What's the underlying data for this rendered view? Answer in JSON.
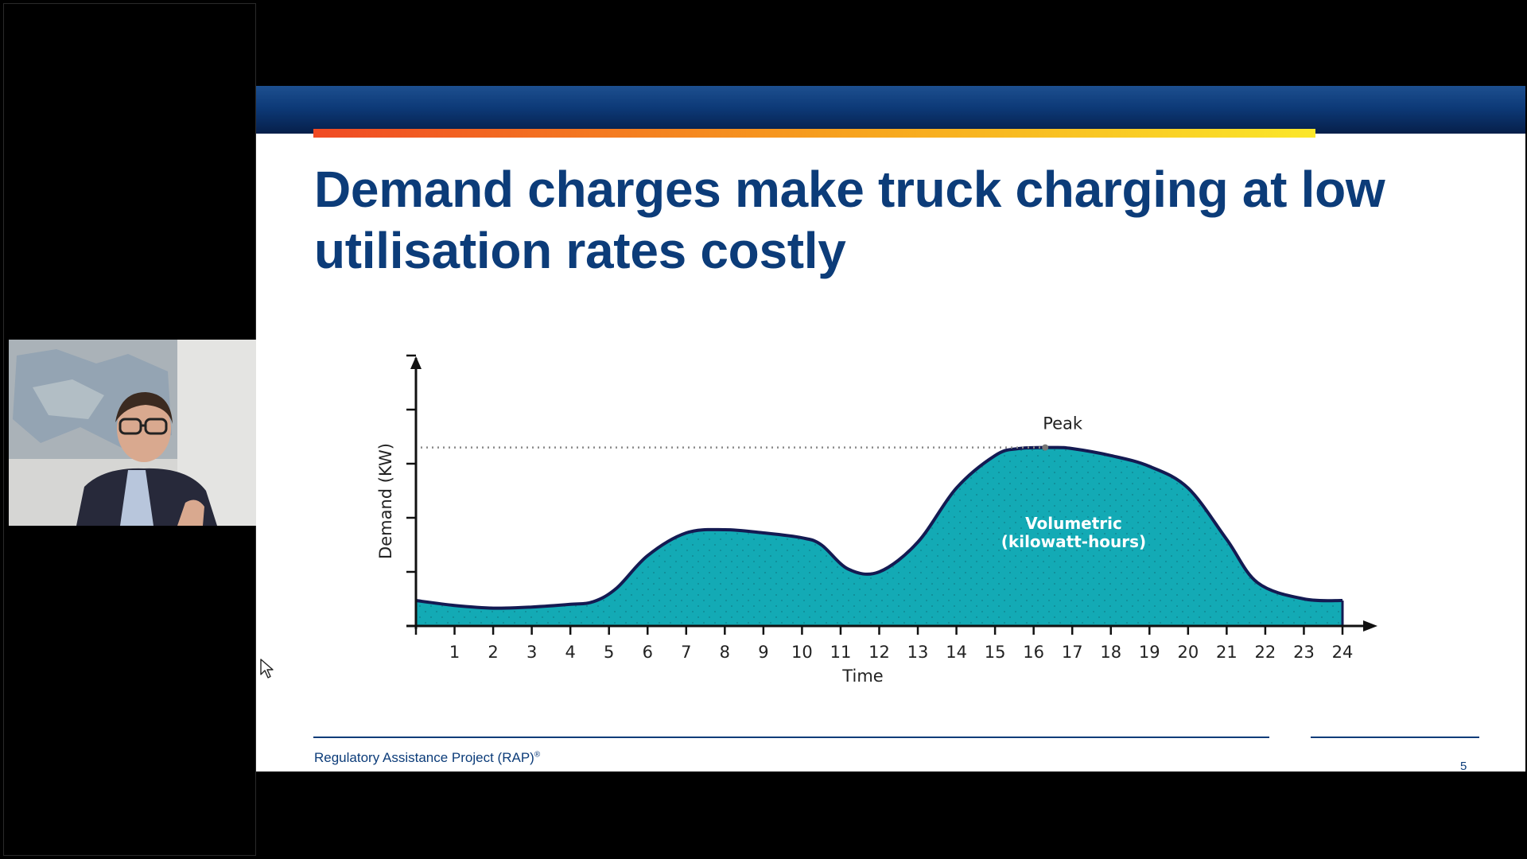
{
  "slide": {
    "title_line_1": "Demand charges make truck charging at low",
    "title_line_2": "utilisation rates costly",
    "footer_org": "Regulatory Assistance Project (RAP)",
    "footer_mark": "®",
    "page_number": "5",
    "colors": {
      "title": "#0c3c79",
      "band": "#0d3a78",
      "accent_start": "#f04a24",
      "accent_end": "#fbe72a",
      "area_fill": "#13aab5",
      "curve": "#141a52"
    }
  },
  "chart_data": {
    "type": "area",
    "ylabel": "Demand (KW)",
    "xlabel": "Time",
    "x_ticks": [
      "1",
      "2",
      "3",
      "4",
      "5",
      "6",
      "7",
      "8",
      "9",
      "10",
      "11",
      "12",
      "13",
      "14",
      "15",
      "16",
      "17",
      "18",
      "19",
      "20",
      "21",
      "22",
      "23",
      "24"
    ],
    "xlim": [
      0,
      24
    ],
    "ylim": [
      0,
      5
    ],
    "x": [
      0,
      1,
      2,
      3,
      4,
      4.6,
      5.2,
      6,
      7,
      8,
      9,
      10,
      10.5,
      11.2,
      12,
      13,
      14,
      15,
      15.6,
      16.5,
      17,
      18,
      19,
      20,
      21,
      21.8,
      23,
      24
    ],
    "y": [
      0.47,
      0.38,
      0.33,
      0.35,
      0.4,
      0.45,
      0.7,
      1.3,
      1.72,
      1.78,
      1.72,
      1.63,
      1.5,
      1.05,
      1.0,
      1.55,
      2.55,
      3.15,
      3.28,
      3.3,
      3.28,
      3.15,
      2.95,
      2.55,
      1.6,
      0.8,
      0.5,
      0.47
    ],
    "peak": {
      "label": "Peak",
      "x": 16.3,
      "y": 3.3
    },
    "area_label_line_1": "Volumetric",
    "area_label_line_2": "(kilowatt-hours)",
    "y_tick_count": 5,
    "grid": false
  }
}
